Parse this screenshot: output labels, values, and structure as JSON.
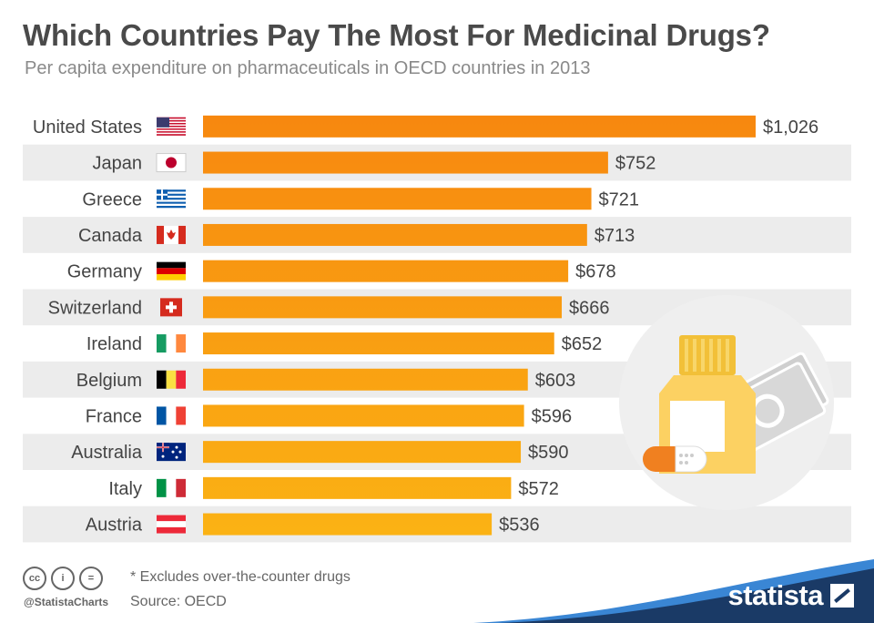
{
  "header": {
    "title": "Which Countries Pay The Most For Medicinal Drugs?",
    "subtitle": "Per capita expenditure on pharmaceuticals in OECD countries in 2013"
  },
  "chart_data": {
    "type": "bar",
    "orientation": "horizontal",
    "categories": [
      "United States",
      "Japan",
      "Greece",
      "Canada",
      "Germany",
      "Switzerland",
      "Ireland",
      "Belgium",
      "France",
      "Australia",
      "Italy",
      "Austria"
    ],
    "values": [
      1026,
      752,
      721,
      713,
      678,
      666,
      652,
      603,
      596,
      590,
      572,
      536
    ],
    "value_labels": [
      "$1,026",
      "$752",
      "$721",
      "$713",
      "$678",
      "$666",
      "$652",
      "$603",
      "$596",
      "$590",
      "$572",
      "$536"
    ],
    "flag_icons": [
      "us-flag-icon",
      "japan-flag-icon",
      "greece-flag-icon",
      "canada-flag-icon",
      "germany-flag-icon",
      "switzerland-flag-icon",
      "ireland-flag-icon",
      "belgium-flag-icon",
      "france-flag-icon",
      "australia-flag-icon",
      "italy-flag-icon",
      "austria-flag-icon"
    ],
    "xlim": [
      0,
      1026
    ],
    "grid": false,
    "colors": {
      "bar_top": "#f7870f",
      "bar_bottom": "#fbb314",
      "row_stripe": "#ececec",
      "illustration_circle": "#efefef"
    }
  },
  "footer": {
    "note": "* Excludes over-the-counter drugs",
    "source": "Source: OECD",
    "handle": "@StatistaCharts",
    "license_icons": [
      "cc-icon",
      "by-icon",
      "nd-icon"
    ],
    "license_glyphs": [
      "cc",
      "i",
      "="
    ],
    "brand": "statista",
    "brand_color": "#1a3a66",
    "wave_color": "#3a86d4"
  }
}
